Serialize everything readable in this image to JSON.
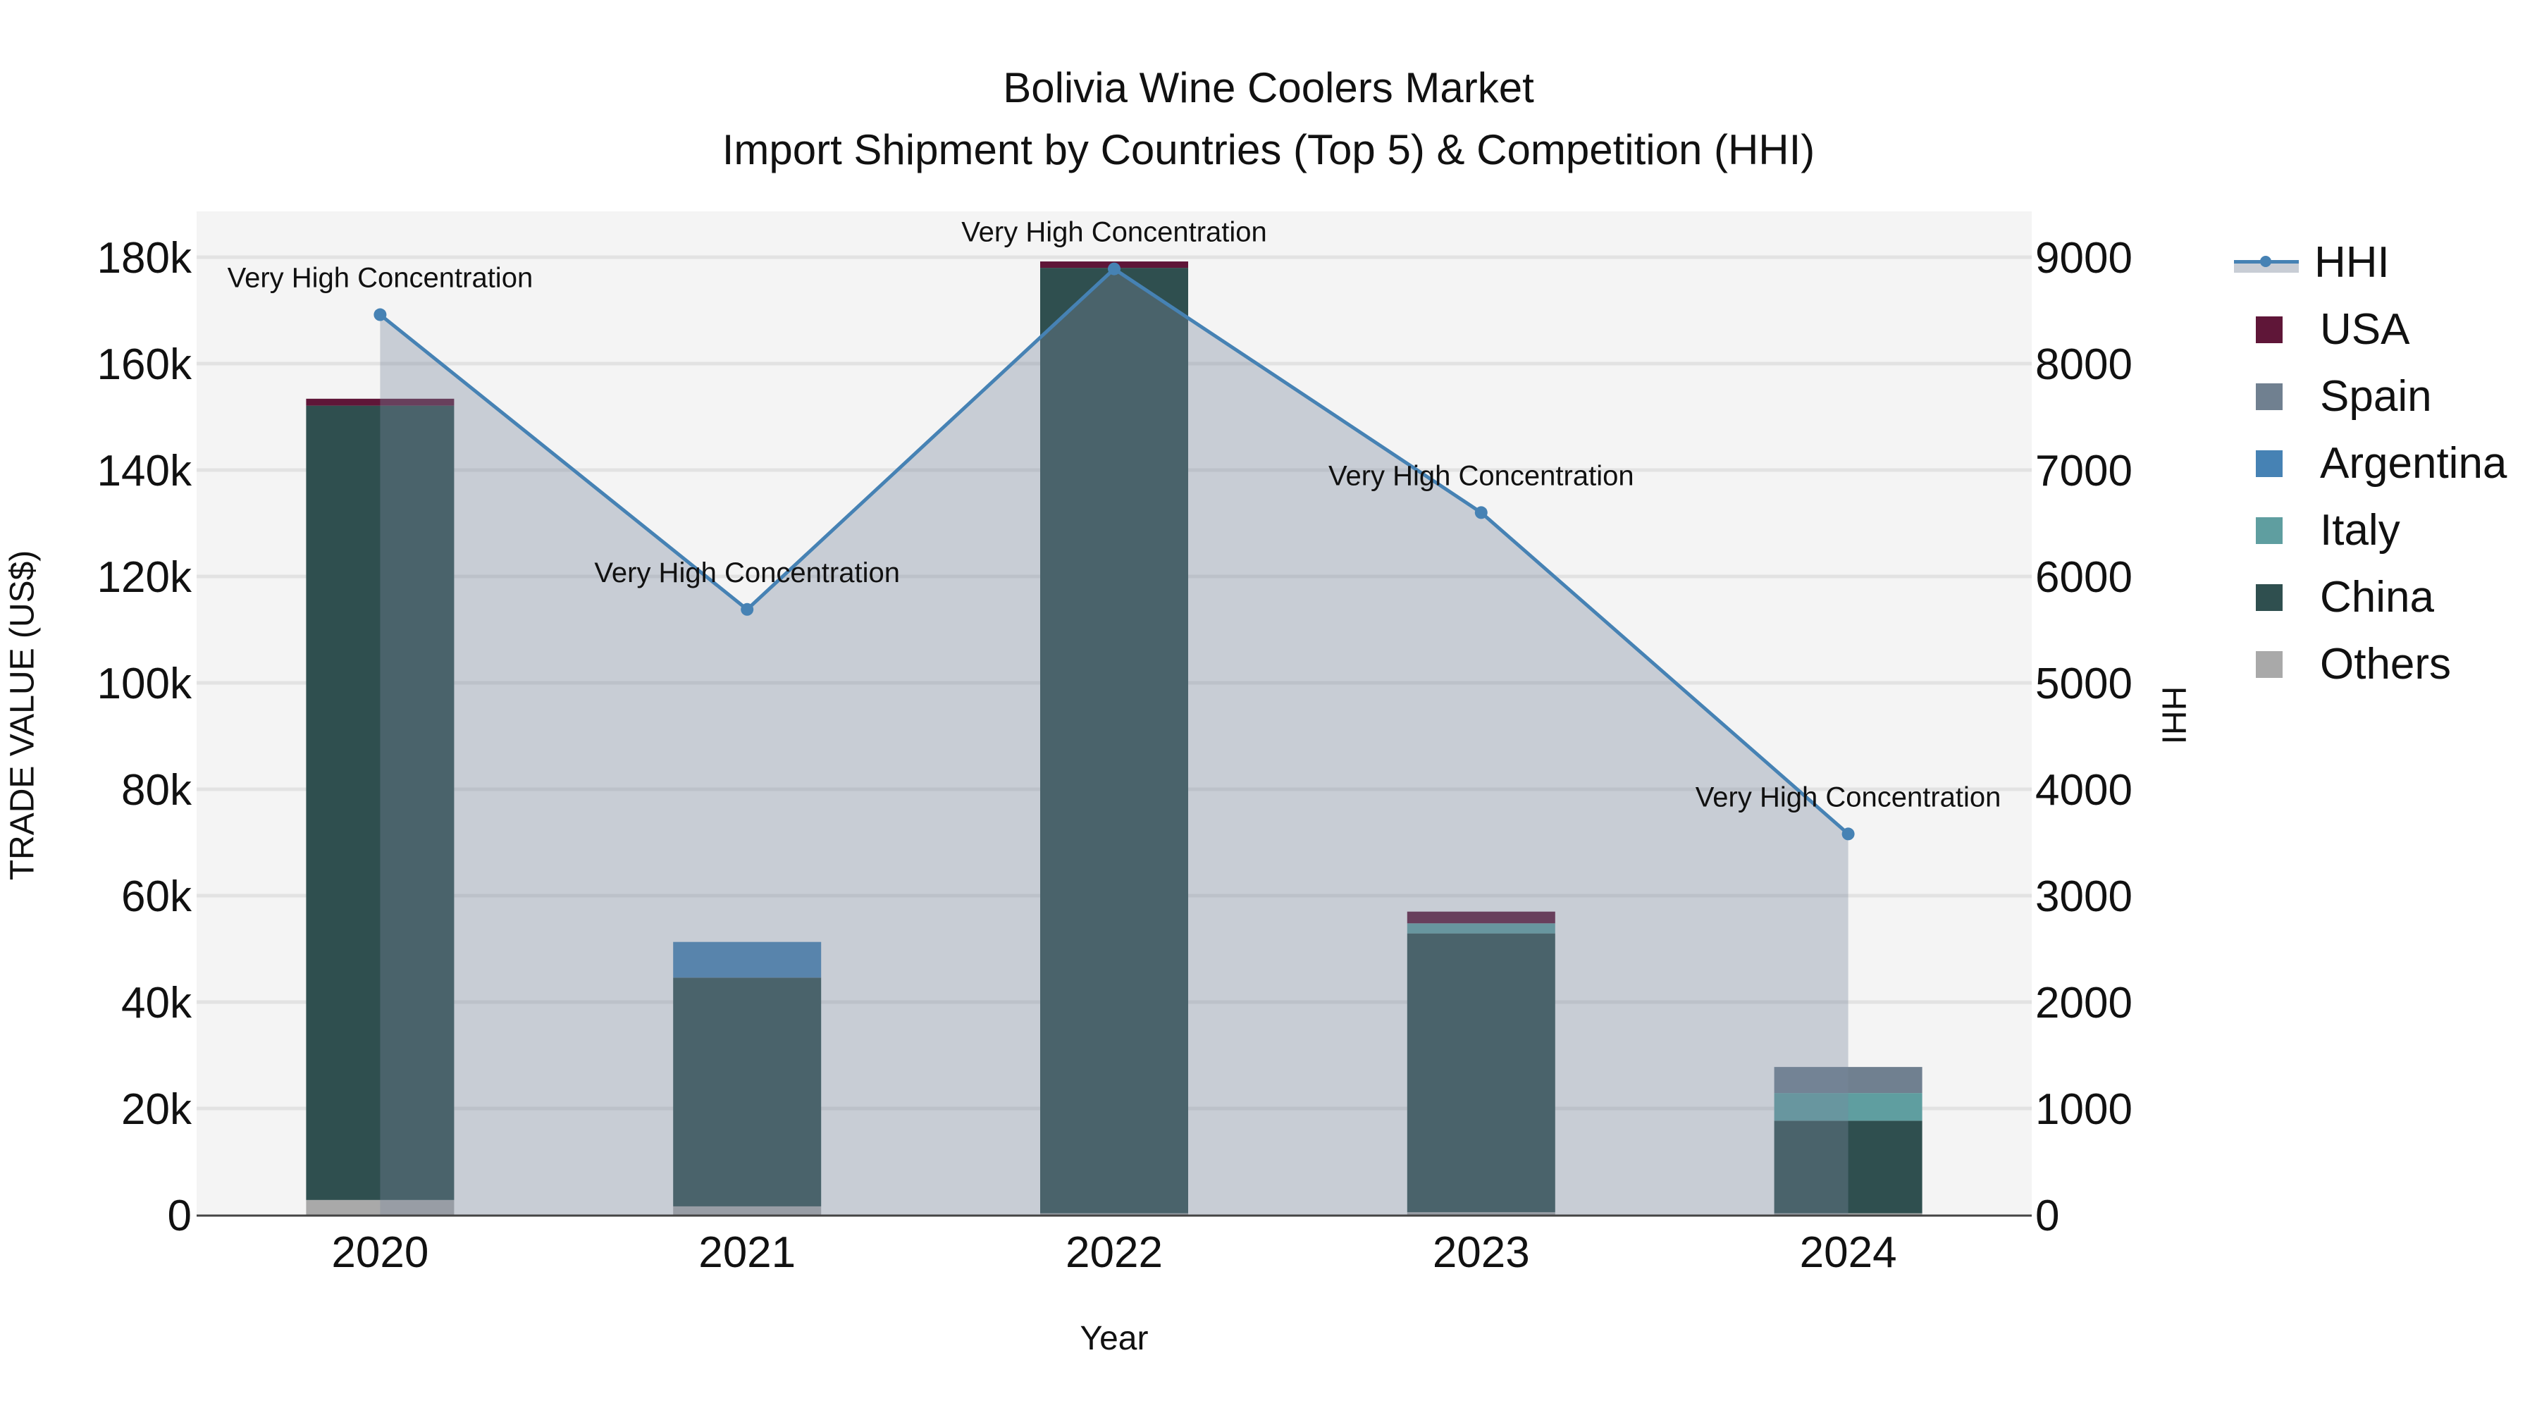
{
  "title": {
    "line1": "Bolivia Wine Coolers Market",
    "line2": "Import Shipment by Countries (Top 5) & Competition (HHI)"
  },
  "axes": {
    "x_title": "Year",
    "y_left_title": "TRADE VALUE (US$)",
    "y_right_title": "HHI",
    "y_left_ticks": [
      "0",
      "20k",
      "40k",
      "60k",
      "80k",
      "100k",
      "120k",
      "140k",
      "160k",
      "180k"
    ],
    "y_right_ticks": [
      "0",
      "1000",
      "2000",
      "3000",
      "4000",
      "5000",
      "6000",
      "7000",
      "8000",
      "9000"
    ],
    "x_ticks": [
      "2020",
      "2021",
      "2022",
      "2023",
      "2024"
    ]
  },
  "legend": {
    "items": [
      {
        "label": "HHI",
        "kind": "line",
        "color": "#4682b4"
      },
      {
        "label": "USA",
        "kind": "bar",
        "color": "#5f1638"
      },
      {
        "label": "Spain",
        "kind": "bar",
        "color": "#708090"
      },
      {
        "label": "Argentina",
        "kind": "bar",
        "color": "#4682b4"
      },
      {
        "label": "Italy",
        "kind": "bar",
        "color": "#5f9ea0"
      },
      {
        "label": "China",
        "kind": "bar",
        "color": "#2f4f4f"
      },
      {
        "label": "Others",
        "kind": "bar",
        "color": "#a9a9a9"
      }
    ]
  },
  "chart_data": {
    "type": "bar",
    "stacked": true,
    "title": "Bolivia Wine Coolers Market — Import Shipment by Countries (Top 5) & Competition (HHI)",
    "xlabel": "Year",
    "ylabel": "TRADE VALUE (US$)",
    "y2label": "HHI",
    "categories": [
      "2020",
      "2021",
      "2022",
      "2023",
      "2024"
    ],
    "ylim": [
      0,
      188600
    ],
    "y2lim": [
      0,
      9430
    ],
    "grid": true,
    "legend_position": "right",
    "series": [
      {
        "name": "Others",
        "color": "#a9a9a9",
        "values": [
          2800,
          1600,
          300,
          500,
          300
        ]
      },
      {
        "name": "China",
        "color": "#2f4f4f",
        "values": [
          149300,
          43000,
          177700,
          52400,
          17400
        ]
      },
      {
        "name": "Italy",
        "color": "#5f9ea0",
        "values": [
          0,
          0,
          0,
          1900,
          5200
        ]
      },
      {
        "name": "Argentina",
        "color": "#4682b4",
        "values": [
          0,
          6700,
          0,
          0,
          0
        ]
      },
      {
        "name": "Spain",
        "color": "#708090",
        "values": [
          0,
          0,
          0,
          0,
          4900
        ]
      },
      {
        "name": "USA",
        "color": "#5f1638",
        "values": [
          1300,
          0,
          1200,
          2200,
          0
        ]
      }
    ],
    "line_series": {
      "name": "HHI",
      "axis": "right",
      "color": "#4682b4",
      "fill": "tozeroy",
      "values": [
        8460,
        5690,
        8890,
        6600,
        3580
      ]
    },
    "annotations": [
      {
        "x": "2020",
        "text": "Very High Concentration"
      },
      {
        "x": "2021",
        "text": "Very High Concentration"
      },
      {
        "x": "2022",
        "text": "Very High Concentration"
      },
      {
        "x": "2023",
        "text": "Very High Concentration"
      },
      {
        "x": "2024",
        "text": "Very High Concentration"
      }
    ]
  }
}
